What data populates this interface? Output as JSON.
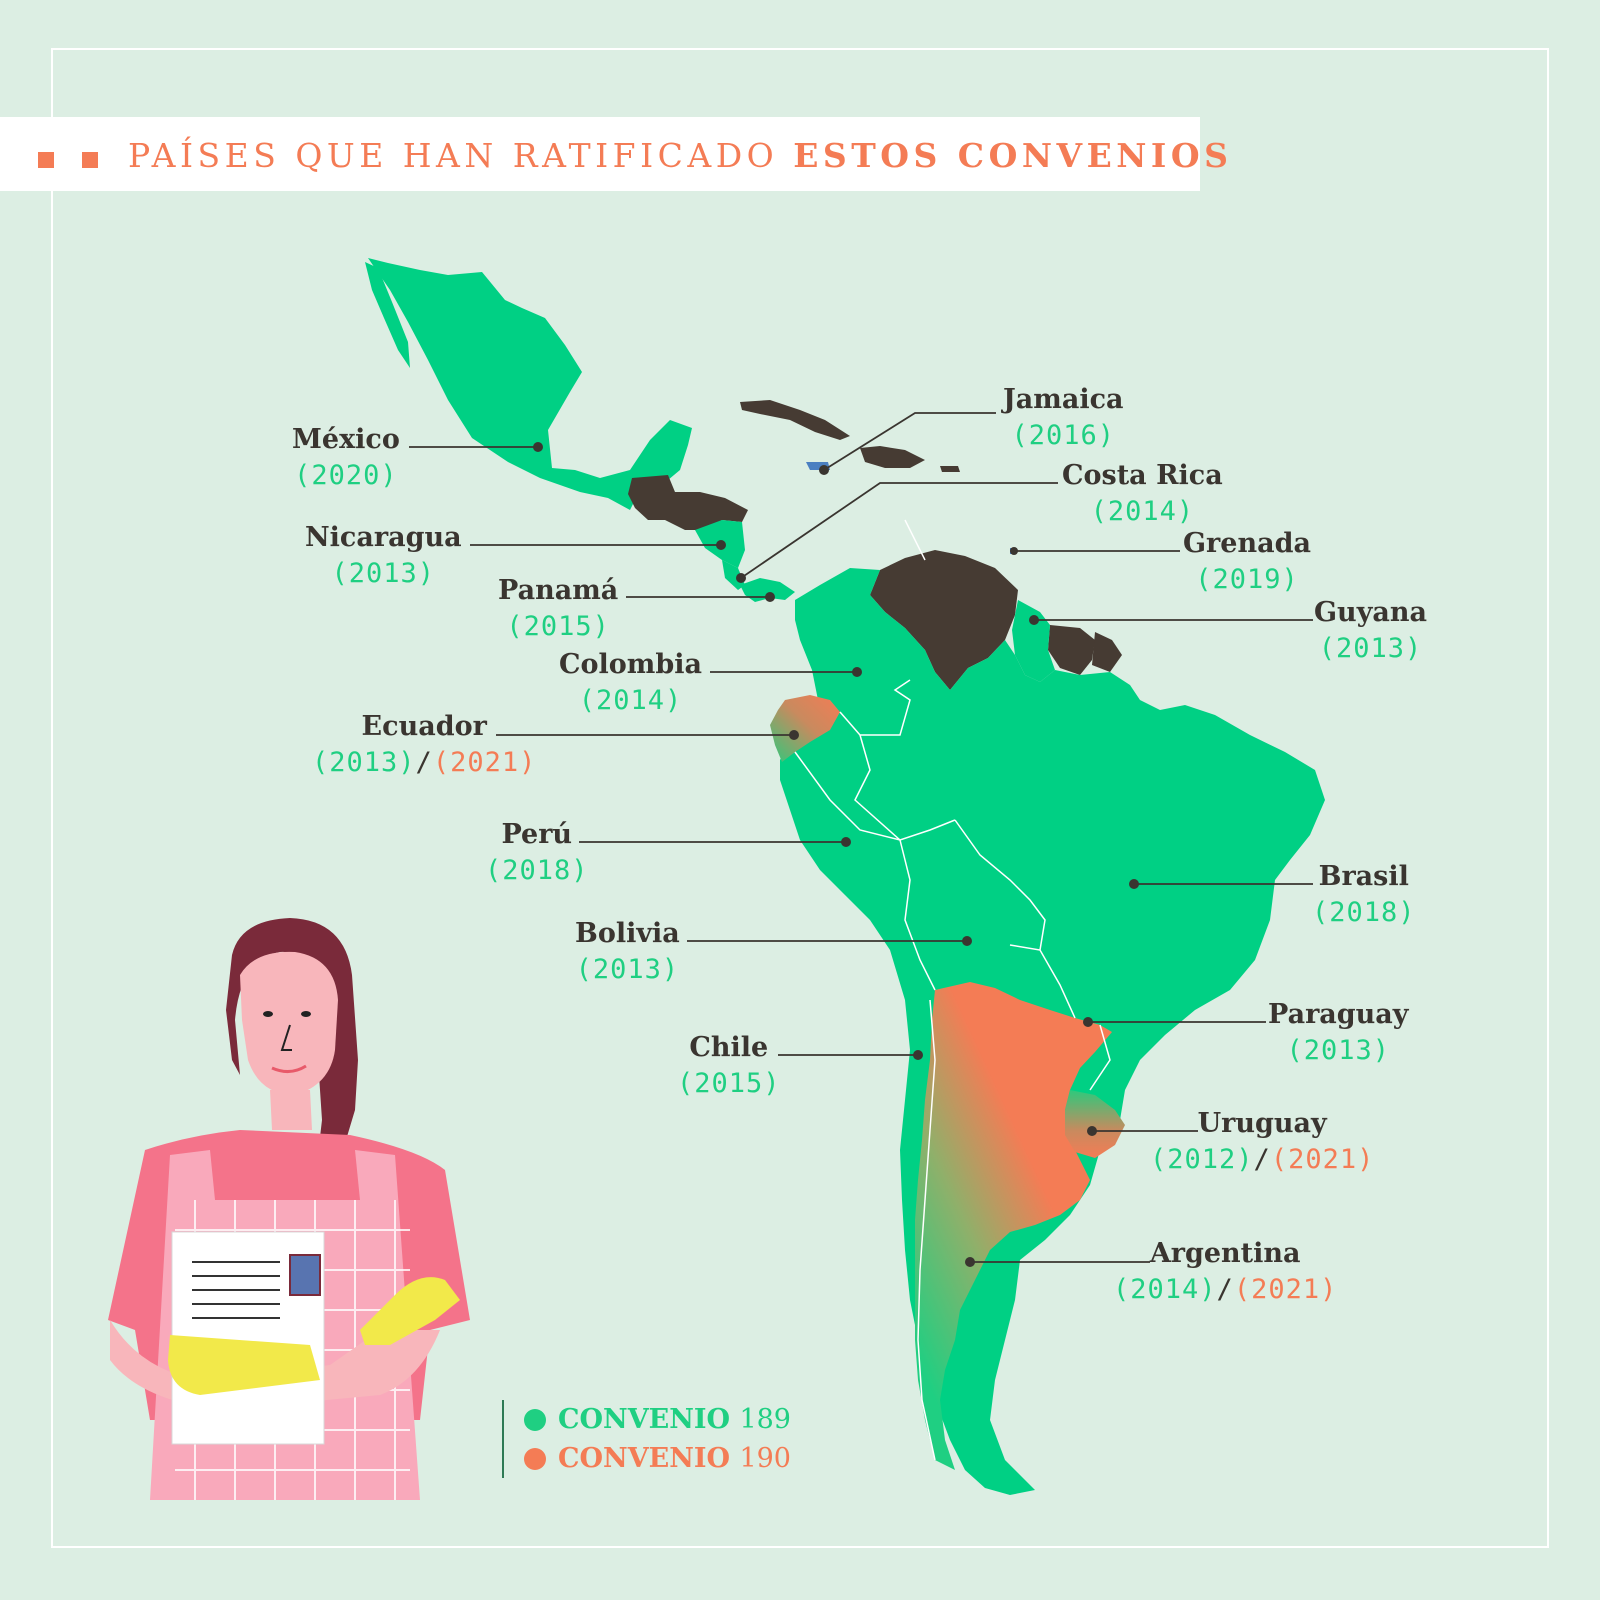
{
  "title": {
    "light": "PAÍSES QUE HAN RATIFICADO",
    "bold": "ESTOS CONVENIOS"
  },
  "colors": {
    "convenio189": "#1fcf82",
    "convenio190": "#f47c55",
    "not_ratified": "#463b33",
    "background": "#dceee3"
  },
  "countries": [
    {
      "name": "México",
      "c189": "(2020)"
    },
    {
      "name": "Nicaragua",
      "c189": "(2013)"
    },
    {
      "name": "Panamá",
      "c189": "(2015)"
    },
    {
      "name": "Colombia",
      "c189": "(2014)"
    },
    {
      "name": "Ecuador",
      "c189": "(2013)",
      "c190": "(2021)"
    },
    {
      "name": "Perú",
      "c189": "(2018)"
    },
    {
      "name": "Bolivia",
      "c189": "(2013)"
    },
    {
      "name": "Chile",
      "c189": "(2015)"
    },
    {
      "name": "Jamaica",
      "c189": "(2016)"
    },
    {
      "name": "Costa Rica",
      "c189": "(2014)"
    },
    {
      "name": "Grenada",
      "c189": "(2019)"
    },
    {
      "name": "Guyana",
      "c189": "(2013)"
    },
    {
      "name": "Brasil",
      "c189": "(2018)"
    },
    {
      "name": "Paraguay",
      "c189": "(2013)"
    },
    {
      "name": "Uruguay",
      "c189": "(2012)",
      "c190": "(2021)"
    },
    {
      "name": "Argentina",
      "c189": "(2014)",
      "c190": "(2021)"
    }
  ],
  "separator": "/",
  "legend": [
    {
      "label": "CONVENIO",
      "number": "189"
    },
    {
      "label": "CONVENIO",
      "number": "190"
    }
  ]
}
